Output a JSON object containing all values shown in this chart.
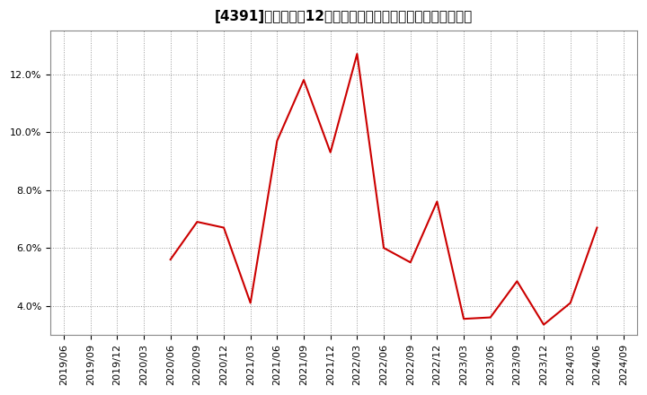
{
  "title": "[4391]　売上高の12か月移動合計の対前年同期増減率の推移",
  "line_color": "#cc0000",
  "background_color": "#ffffff",
  "plot_bg_color": "#ffffff",
  "grid_color": "#999999",
  "dates": [
    "2019/06",
    "2019/09",
    "2019/12",
    "2020/03",
    "2020/06",
    "2020/09",
    "2020/12",
    "2021/03",
    "2021/06",
    "2021/09",
    "2021/12",
    "2022/03",
    "2022/06",
    "2022/09",
    "2022/12",
    "2023/03",
    "2023/06",
    "2023/09",
    "2023/12",
    "2024/03",
    "2024/06",
    "2024/09"
  ],
  "values": [
    null,
    null,
    null,
    null,
    5.6,
    6.9,
    6.7,
    4.1,
    9.7,
    11.8,
    9.3,
    12.7,
    6.0,
    5.5,
    7.6,
    3.55,
    3.6,
    4.85,
    3.35,
    4.1,
    6.7,
    null
  ],
  "yticks": [
    4.0,
    6.0,
    8.0,
    10.0,
    12.0
  ],
  "ylim": [
    3.0,
    13.5
  ],
  "title_fontsize": 11,
  "tick_fontsize": 8,
  "linewidth": 1.5
}
